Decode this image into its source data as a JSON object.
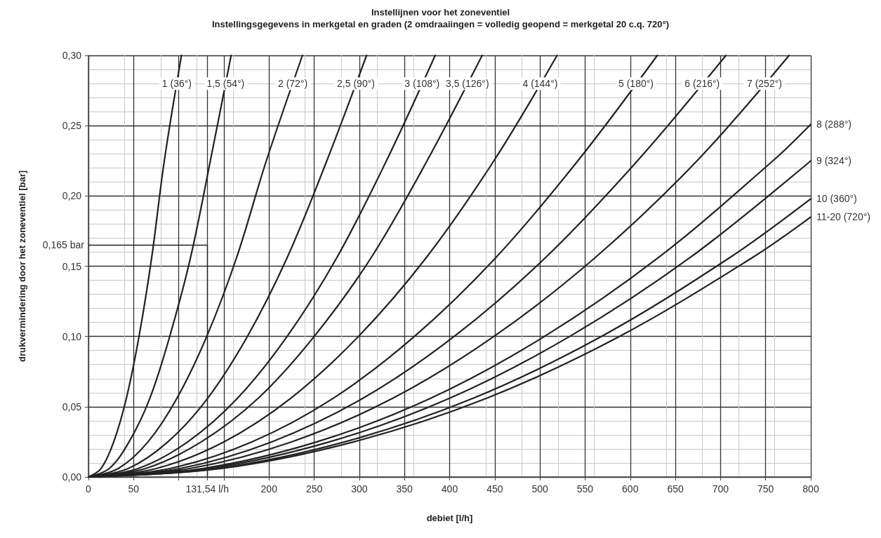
{
  "chart_data": {
    "type": "line",
    "title": "Instellijnen voor het zoneventiel",
    "subtitle": "Instellingsgegevens in merkgetal en graden (2 omdraaiingen = volledig geopend = merkgetal 20 c.q. 720°)",
    "xlabel": "debiet [l/h]",
    "ylabel": "drukvermindering door het zoneventiel [bar]",
    "xlim": [
      0,
      800
    ],
    "xticks": [
      0,
      50,
      {
        "value": 100,
        "label": null
      },
      {
        "value": 131.54,
        "label": "131,54 l/h"
      },
      {
        "value": 150,
        "label": null
      },
      200,
      250,
      300,
      350,
      400,
      450,
      500,
      550,
      600,
      650,
      700,
      750,
      800
    ],
    "ylim": [
      0,
      0.3
    ],
    "yticks": [
      {
        "value": 0,
        "label": "0,00"
      },
      {
        "value": 0.05,
        "label": "0,05"
      },
      {
        "value": 0.1,
        "label": "0,10"
      },
      {
        "value": 0.15,
        "label": "0,15"
      },
      {
        "value": 0.2,
        "label": "0,20"
      },
      {
        "value": 0.25,
        "label": "0,25"
      },
      {
        "value": 0.3,
        "label": "0,30"
      }
    ],
    "grid": true,
    "legend": false,
    "marker": "none",
    "line_style": "solid",
    "ref_lines": [
      {
        "axis": "y",
        "value": 0.165,
        "label": "0,165 bar"
      },
      {
        "axis": "x",
        "value": 131.54
      }
    ],
    "series": [
      {
        "name": "1 (36°)",
        "color": "#222222",
        "x": [
          0,
          14,
          28,
          42,
          56,
          70,
          84,
          103
        ],
        "values": [
          0,
          0.006,
          0.025,
          0.056,
          0.1,
          0.156,
          0.225,
          0.3
        ]
      },
      {
        "name": "1,5 (54°)",
        "color": "#222222",
        "x": [
          0,
          23,
          45,
          68,
          90,
          113,
          135,
          158
        ],
        "values": [
          0,
          0.006,
          0.025,
          0.056,
          0.1,
          0.156,
          0.225,
          0.3
        ]
      },
      {
        "name": "2 (72°)",
        "color": "#222222",
        "x": [
          0,
          33,
          66,
          98,
          131,
          164,
          197,
          237
        ],
        "values": [
          0,
          0.006,
          0.025,
          0.056,
          0.1,
          0.156,
          0.225,
          0.3
        ]
      },
      {
        "name": "2,5 (90°)",
        "color": "#222222",
        "x": [
          0,
          44,
          88,
          132,
          176,
          220,
          264,
          308
        ],
        "values": [
          0,
          0.006,
          0.025,
          0.056,
          0.1,
          0.156,
          0.225,
          0.3
        ]
      },
      {
        "name": "3 (108°)",
        "color": "#222222",
        "x": [
          0,
          55,
          110,
          165,
          220,
          275,
          330,
          384
        ],
        "values": [
          0,
          0.006,
          0.025,
          0.056,
          0.1,
          0.156,
          0.225,
          0.3
        ]
      },
      {
        "name": "3,5 (126°)",
        "color": "#222222",
        "x": [
          0,
          63,
          125,
          188,
          250,
          313,
          375,
          436
        ],
        "values": [
          0,
          0.006,
          0.025,
          0.056,
          0.1,
          0.156,
          0.225,
          0.3
        ]
      },
      {
        "name": "4 (144°)",
        "color": "#222222",
        "x": [
          0,
          75,
          150,
          224,
          299,
          374,
          449,
          519
        ],
        "values": [
          0,
          0.006,
          0.025,
          0.056,
          0.1,
          0.156,
          0.225,
          0.3
        ]
      },
      {
        "name": "5 (180°)",
        "color": "#222222",
        "x": [
          0,
          90,
          181,
          271,
          361,
          451,
          542,
          630
        ],
        "values": [
          0,
          0.006,
          0.025,
          0.056,
          0.1,
          0.156,
          0.225,
          0.3
        ]
      },
      {
        "name": "6 (216°)",
        "color": "#222222",
        "x": [
          0,
          101,
          203,
          304,
          405,
          506,
          608,
          706
        ],
        "values": [
          0,
          0.006,
          0.025,
          0.056,
          0.1,
          0.156,
          0.225,
          0.3
        ]
      },
      {
        "name": "7 (252°)",
        "color": "#222222",
        "x": [
          0,
          112,
          225,
          337,
          449,
          561,
          674,
          776
        ],
        "values": [
          0,
          0.006,
          0.025,
          0.056,
          0.1,
          0.156,
          0.225,
          0.3
        ]
      },
      {
        "name": "8 (288°)",
        "color": "#222222",
        "x": [
          0,
          126,
          253,
          379,
          505,
          631,
          758,
          800
        ],
        "values": [
          0,
          0.006,
          0.025,
          0.056,
          0.1,
          0.156,
          0.225,
          0.251
        ]
      },
      {
        "name": "9 (324°)",
        "color": "#222222",
        "x": [
          0,
          133,
          267,
          400,
          533,
          666,
          800
        ],
        "values": [
          0,
          0.006,
          0.025,
          0.056,
          0.1,
          0.156,
          0.225
        ]
      },
      {
        "name": "10 (360°)",
        "color": "#222222",
        "x": [
          0,
          142,
          284,
          426,
          568,
          710,
          800
        ],
        "values": [
          0,
          0.006,
          0.025,
          0.056,
          0.1,
          0.156,
          0.198
        ]
      },
      {
        "name": "11-20 (720°)",
        "color": "#222222",
        "x": [
          0,
          147,
          294,
          441,
          588,
          735,
          800
        ],
        "values": [
          0,
          0.006,
          0.025,
          0.056,
          0.1,
          0.156,
          0.185
        ]
      }
    ]
  }
}
